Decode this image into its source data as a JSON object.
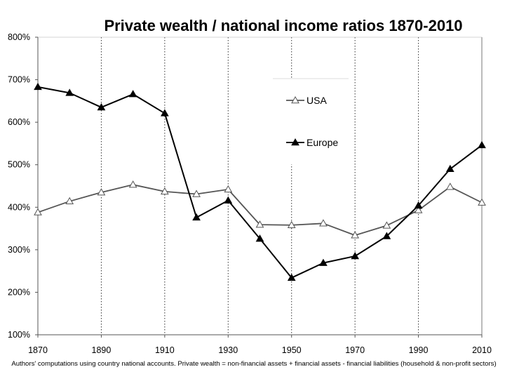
{
  "chart_data": {
    "type": "line",
    "title": "Private wealth / national income ratios 1870-2010",
    "xlabel": "",
    "ylabel": "",
    "x": [
      1870,
      1880,
      1890,
      1900,
      1910,
      1920,
      1930,
      1940,
      1950,
      1960,
      1970,
      1980,
      1990,
      2000,
      2010
    ],
    "xlim": [
      1870,
      2010
    ],
    "xticks": [
      1870,
      1890,
      1910,
      1930,
      1950,
      1970,
      1990,
      2010
    ],
    "xtick_labels": [
      "1870",
      "1890",
      "1910",
      "1930",
      "1950",
      "1970",
      "1990",
      "2010"
    ],
    "ylim": [
      100,
      800
    ],
    "yticks": [
      100,
      200,
      300,
      400,
      500,
      600,
      700,
      800
    ],
    "ytick_labels": [
      "100%",
      "200%",
      "300%",
      "400%",
      "500%",
      "600%",
      "700%",
      "800%"
    ],
    "grid": "vertical-dotted",
    "legend_position": "upper-middle-right",
    "series": [
      {
        "name": "USA",
        "marker": "hollow-triangle",
        "color": "#555555",
        "values": [
          388,
          414,
          435,
          453,
          437,
          431,
          442,
          359,
          358,
          362,
          334,
          357,
          393,
          448,
          411
        ]
      },
      {
        "name": "Europe",
        "marker": "filled-triangle",
        "color": "#000000",
        "values": [
          683,
          669,
          635,
          666,
          621,
          376,
          416,
          326,
          234,
          269,
          285,
          332,
          404,
          490,
          546
        ]
      }
    ],
    "source_note": "Authors' computations using country national accounts. Private wealth = non-financial assets + financial assets - financial liabilities (household & non-profit sectors)"
  }
}
